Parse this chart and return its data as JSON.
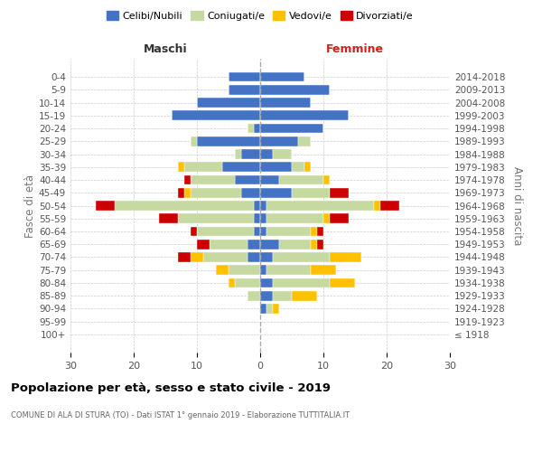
{
  "age_groups": [
    "100+",
    "95-99",
    "90-94",
    "85-89",
    "80-84",
    "75-79",
    "70-74",
    "65-69",
    "60-64",
    "55-59",
    "50-54",
    "45-49",
    "40-44",
    "35-39",
    "30-34",
    "25-29",
    "20-24",
    "15-19",
    "10-14",
    "5-9",
    "0-4"
  ],
  "birth_years": [
    "≤ 1918",
    "1919-1923",
    "1924-1928",
    "1929-1933",
    "1934-1938",
    "1939-1943",
    "1944-1948",
    "1949-1953",
    "1954-1958",
    "1959-1963",
    "1964-1968",
    "1969-1973",
    "1974-1978",
    "1979-1983",
    "1984-1988",
    "1989-1993",
    "1994-1998",
    "1999-2003",
    "2004-2008",
    "2009-2013",
    "2014-2018"
  ],
  "colors": {
    "celibi": "#4472c4",
    "coniugati": "#c5d9a0",
    "vedovi": "#ffc000",
    "divorziati": "#cc0000"
  },
  "maschi": {
    "celibi": [
      0,
      0,
      0,
      0,
      0,
      0,
      2,
      2,
      1,
      1,
      1,
      3,
      4,
      6,
      3,
      10,
      1,
      14,
      10,
      5,
      5
    ],
    "coniugati": [
      0,
      0,
      0,
      2,
      4,
      5,
      7,
      6,
      9,
      12,
      22,
      8,
      7,
      6,
      1,
      1,
      1,
      0,
      0,
      0,
      0
    ],
    "vedovi": [
      0,
      0,
      0,
      0,
      1,
      2,
      2,
      0,
      0,
      0,
      0,
      1,
      0,
      1,
      0,
      0,
      0,
      0,
      0,
      0,
      0
    ],
    "divorziati": [
      0,
      0,
      0,
      0,
      0,
      0,
      2,
      2,
      1,
      3,
      3,
      1,
      1,
      0,
      0,
      0,
      0,
      0,
      0,
      0,
      0
    ]
  },
  "femmine": {
    "celibi": [
      0,
      0,
      1,
      2,
      2,
      1,
      2,
      3,
      1,
      1,
      1,
      5,
      3,
      5,
      2,
      6,
      10,
      14,
      8,
      11,
      7
    ],
    "coniugati": [
      0,
      0,
      1,
      3,
      9,
      7,
      9,
      5,
      7,
      9,
      17,
      6,
      7,
      2,
      3,
      2,
      0,
      0,
      0,
      0,
      0
    ],
    "vedovi": [
      0,
      0,
      1,
      4,
      4,
      4,
      5,
      1,
      1,
      1,
      1,
      0,
      1,
      1,
      0,
      0,
      0,
      0,
      0,
      0,
      0
    ],
    "divorziati": [
      0,
      0,
      0,
      0,
      0,
      0,
      0,
      1,
      1,
      3,
      3,
      3,
      0,
      0,
      0,
      0,
      0,
      0,
      0,
      0,
      0
    ]
  },
  "xlim": 30,
  "title": "Popolazione per età, sesso e stato civile - 2019",
  "subtitle": "COMUNE DI ALA DI STURA (TO) - Dati ISTAT 1° gennaio 2019 - Elaborazione TUTTITALIA.IT",
  "xlabel_left": "Maschi",
  "xlabel_right": "Femmine",
  "ylabel_left": "Fasce di età",
  "ylabel_right": "Anni di nascita",
  "legend_labels": [
    "Celibi/Nubili",
    "Coniugati/e",
    "Vedovi/e",
    "Divorziati/e"
  ],
  "fig_width": 6.0,
  "fig_height": 5.0,
  "dpi": 100
}
